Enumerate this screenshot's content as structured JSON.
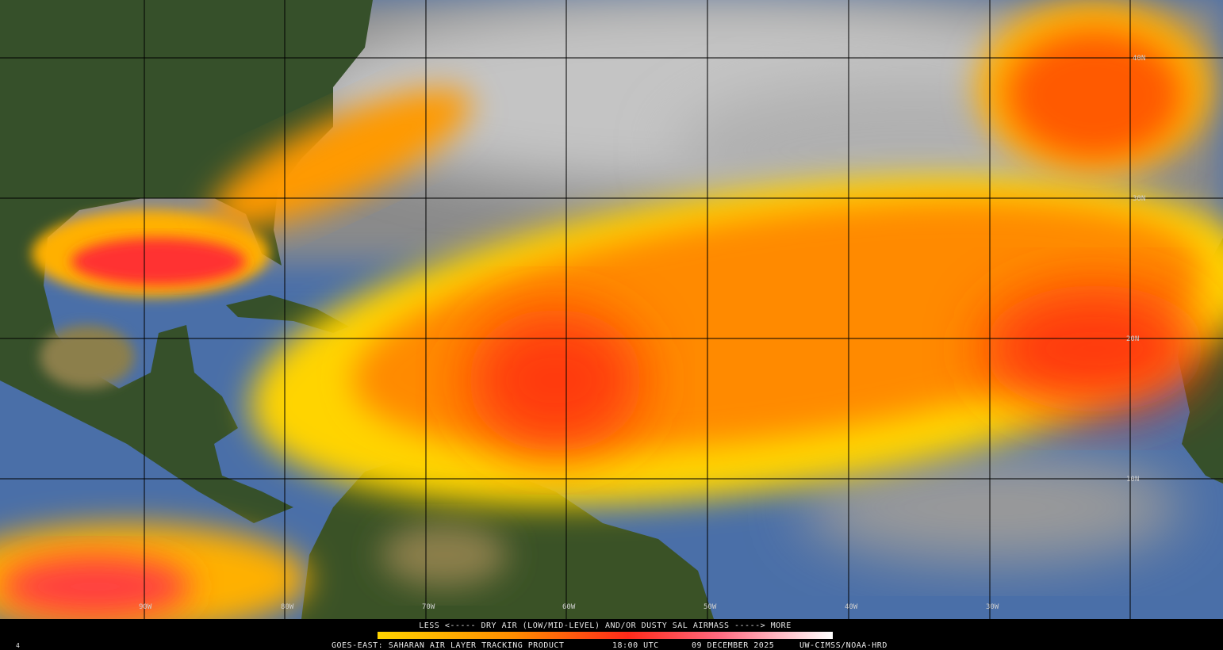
{
  "latitude_labels": [
    "40N",
    "30N",
    "20N",
    "10N"
  ],
  "longitude_labels": [
    "90W",
    "80W",
    "70W",
    "60W",
    "50W",
    "40W",
    "30W"
  ],
  "legend": {
    "scale_text": "LESS <----- DRY AIR (LOW/MID-LEVEL) AND/OR DUSTY SAL AIRMASS -----> MORE"
  },
  "footer": {
    "frame": "4",
    "product": "GOES-EAST: SAHARAN AIR LAYER TRACKING PRODUCT",
    "time": "18:00 UTC",
    "date": "09 DECEMBER 2025",
    "credit": "UW-CIMSS/NOAA-HRD"
  }
}
